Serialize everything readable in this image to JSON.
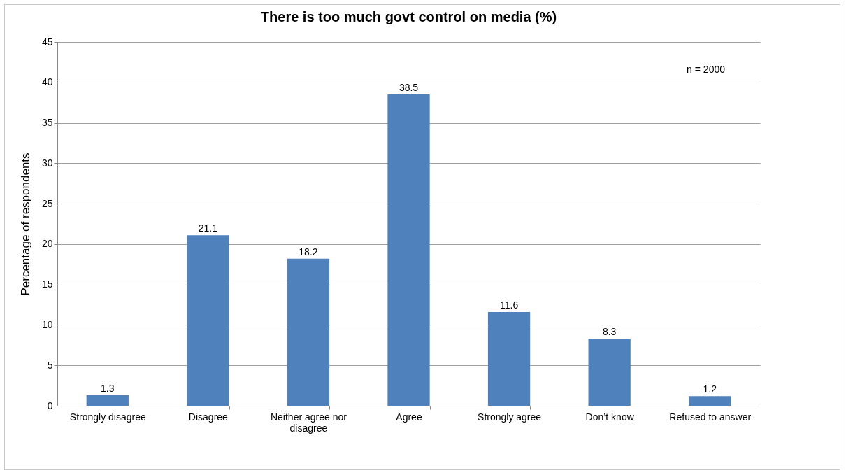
{
  "chart_data": {
    "type": "bar",
    "title": "There is too much govt control on media (%)",
    "ylabel": "Percentage of respondents",
    "categories": [
      "Strongly disagree",
      "Disagree",
      "Neither agree nor disagree",
      "Agree",
      "Strongly agree",
      "Don’t know",
      "Refused to answer"
    ],
    "values": [
      1.3,
      21.1,
      18.2,
      38.5,
      11.6,
      8.3,
      1.2
    ],
    "color": "#4f81bd",
    "ylim": [
      0,
      45
    ],
    "yticks": [
      0,
      5,
      10,
      15,
      20,
      25,
      30,
      35,
      40,
      45
    ],
    "grid": "y",
    "data_labels": true,
    "annotations": [
      "n = 2000"
    ]
  }
}
